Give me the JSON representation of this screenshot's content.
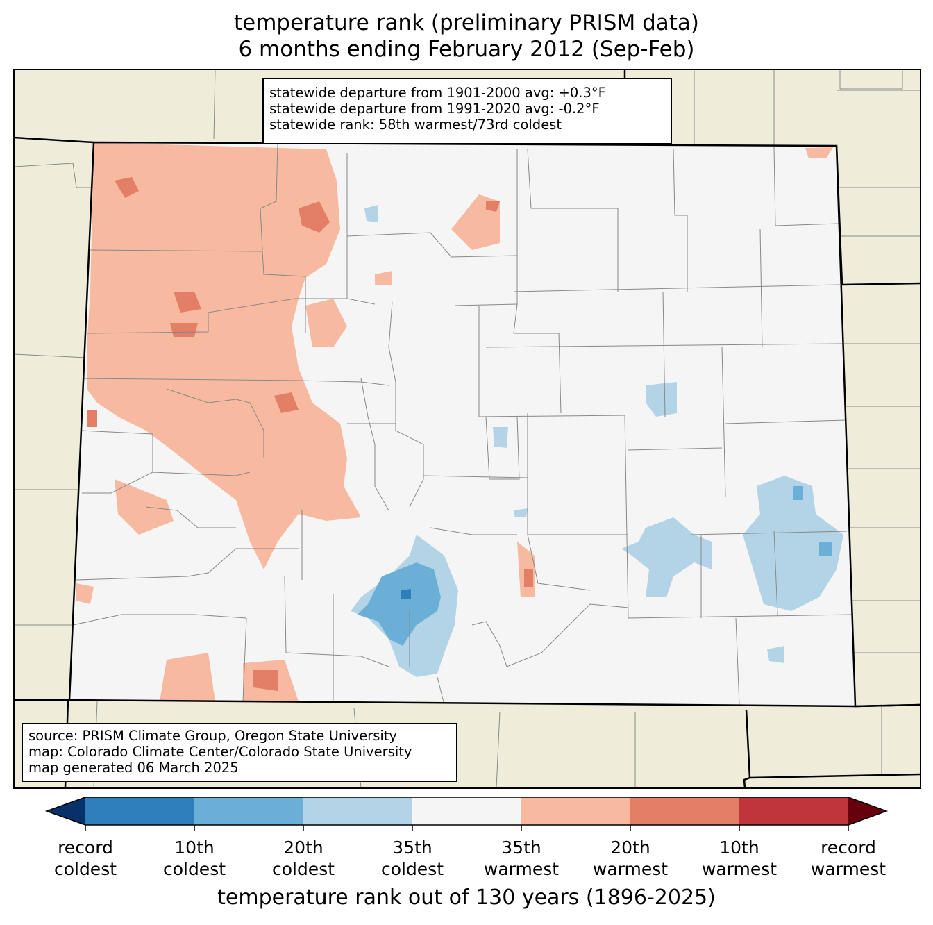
{
  "title": {
    "line1": "temperature rank (preliminary PRISM data)",
    "line2": "6 months ending February 2012 (Sep-Feb)"
  },
  "stats": {
    "line1": "statewide departure from 1901-2000 avg: +0.3°F",
    "line2": "statewide departure from 1991-2020 avg: -0.2°F",
    "line3": "statewide rank: 58th warmest/73rd coldest"
  },
  "source": {
    "line1": "source: PRISM Climate Group, Oregon State University",
    "line2": "map: Colorado Climate Center/Colorado State University",
    "line3": "map generated 06 March 2025"
  },
  "colorbar": {
    "label": "temperature rank out of 130 years (1896-2025)",
    "ticks": [
      {
        "line1": "record",
        "line2": "coldest"
      },
      {
        "line1": "10th",
        "line2": "coldest"
      },
      {
        "line1": "20th",
        "line2": "coldest"
      },
      {
        "line1": "35th",
        "line2": "coldest"
      },
      {
        "line1": "35th",
        "line2": "warmest"
      },
      {
        "line1": "20th",
        "line2": "warmest"
      },
      {
        "line1": "10th",
        "line2": "warmest"
      },
      {
        "line1": "record",
        "line2": "warmest"
      }
    ],
    "colors": {
      "below_record_coldest": "#08306b",
      "record_to_10th_coldest": "#2f7fbd",
      "10th_to_20th_coldest": "#6baed6",
      "20th_to_35th_coldest": "#b3d4e7",
      "near_normal": "#f5f5f5",
      "35th_to_20th_warmest": "#f7b99f",
      "20th_to_10th_warmest": "#e27f66",
      "10th_to_record_warmest": "#c0343c",
      "above_record_warmest": "#67000d"
    }
  },
  "map_colors": {
    "background": "#efedda",
    "state_interior": "#f5f5f5"
  }
}
